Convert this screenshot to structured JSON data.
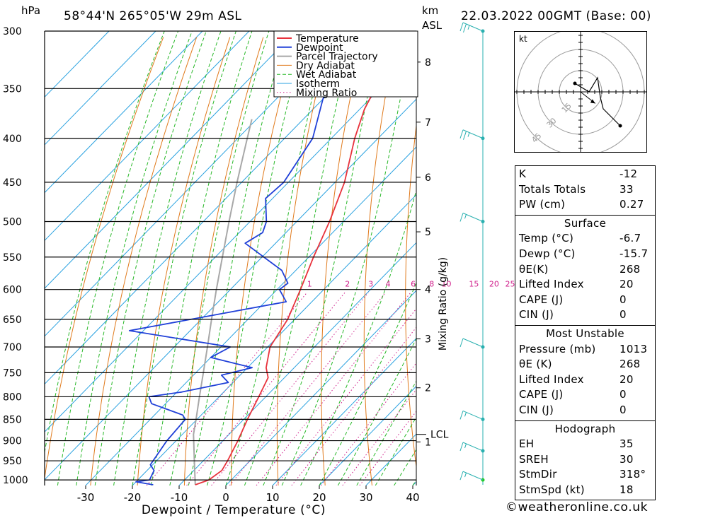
{
  "header": {
    "pressure_unit": "hPa",
    "location": "58°44'N  265°05'W  29m  ASL",
    "km_unit": "km",
    "asl_label": "ASL",
    "datetime": "22.03.2022  00GMT  (Base: 00)"
  },
  "chart_data": {
    "type": "skew-t",
    "xlabel": "Dewpoint / Temperature (°C)",
    "ylabel_right": "Mixing Ratio (g/kg)",
    "pressure_levels": [
      300,
      350,
      400,
      450,
      500,
      550,
      600,
      650,
      700,
      750,
      800,
      850,
      900,
      950,
      1000
    ],
    "pressure_range": [
      300,
      1015
    ],
    "temperature_ticks": [
      -30,
      -20,
      -10,
      0,
      10,
      20,
      30,
      40
    ],
    "temperature_range_at_bottom": [
      -40,
      40
    ],
    "km_ticks": [
      {
        "label": "8",
        "p": 326
      },
      {
        "label": "7",
        "p": 383
      },
      {
        "label": "6",
        "p": 444
      },
      {
        "label": "5",
        "p": 514
      },
      {
        "label": "4",
        "p": 600
      },
      {
        "label": "3",
        "p": 685
      },
      {
        "label": "2",
        "p": 781
      },
      {
        "label": "1",
        "p": 903
      }
    ],
    "lcl": {
      "label": "LCL",
      "p": 885
    },
    "mixing_ratio_labels": [
      "1",
      "2",
      "3",
      "4",
      "6",
      "8",
      "10",
      "15",
      "20",
      "25"
    ],
    "mixing_ratio_label_pressure": 600,
    "legend": [
      "Temperature",
      "Dewpoint",
      "Parcel Trajectory",
      "Dry Adiabat",
      "Wet Adiabat",
      "Isotherm",
      "Mixing Ratio"
    ],
    "colors": {
      "temperature": "#e8323c",
      "dewpoint": "#2040d8",
      "parcel": "#a8a8a8",
      "dry_adiabat": "#e07a1c",
      "wet_adiabat": "#28b828",
      "isotherm": "#2aa2e0",
      "mixing_ratio": "#d0208c",
      "wind": "#2ab0b0"
    },
    "temperature": [
      {
        "p": 1013,
        "t": -6.7
      },
      {
        "p": 1000,
        "t": -4.8
      },
      {
        "p": 975,
        "t": -4.0
      },
      {
        "p": 950,
        "t": -4.8
      },
      {
        "p": 900,
        "t": -6.8
      },
      {
        "p": 850,
        "t": -9.2
      },
      {
        "p": 800,
        "t": -11.5
      },
      {
        "p": 760,
        "t": -13.5
      },
      {
        "p": 740,
        "t": -16.0
      },
      {
        "p": 700,
        "t": -19.5
      },
      {
        "p": 650,
        "t": -21.5
      },
      {
        "p": 600,
        "t": -25.0
      },
      {
        "p": 550,
        "t": -29.0
      },
      {
        "p": 500,
        "t": -33.0
      },
      {
        "p": 450,
        "t": -38.0
      },
      {
        "p": 400,
        "t": -45.0
      },
      {
        "p": 370,
        "t": -49.0
      },
      {
        "p": 350,
        "t": -51.0
      },
      {
        "p": 340,
        "t": -50.0
      },
      {
        "p": 325,
        "t": -51.5
      },
      {
        "p": 310,
        "t": -51.0
      },
      {
        "p": 300,
        "t": -53.0
      }
    ],
    "dewpoint": [
      {
        "p": 1013,
        "t": -15.7
      },
      {
        "p": 1005,
        "t": -20.0
      },
      {
        "p": 1000,
        "t": -17.5
      },
      {
        "p": 975,
        "t": -18.5
      },
      {
        "p": 960,
        "t": -20.5
      },
      {
        "p": 900,
        "t": -22.0
      },
      {
        "p": 850,
        "t": -22.5
      },
      {
        "p": 840,
        "t": -24.0
      },
      {
        "p": 815,
        "t": -33.0
      },
      {
        "p": 800,
        "t": -35.0
      },
      {
        "p": 790,
        "t": -29.0
      },
      {
        "p": 770,
        "t": -21.0
      },
      {
        "p": 755,
        "t": -24.0
      },
      {
        "p": 740,
        "t": -19.0
      },
      {
        "p": 720,
        "t": -30.0
      },
      {
        "p": 700,
        "t": -28.0
      },
      {
        "p": 670,
        "t": -53.0
      },
      {
        "p": 620,
        "t": -25.5
      },
      {
        "p": 600,
        "t": -29.5
      },
      {
        "p": 590,
        "t": -29.0
      },
      {
        "p": 570,
        "t": -33.0
      },
      {
        "p": 530,
        "t": -46.5
      },
      {
        "p": 515,
        "t": -45.0
      },
      {
        "p": 500,
        "t": -46.5
      },
      {
        "p": 470,
        "t": -51.5
      },
      {
        "p": 450,
        "t": -51.0
      },
      {
        "p": 400,
        "t": -54.0
      },
      {
        "p": 360,
        "t": -60.0
      },
      {
        "p": 345,
        "t": -62.0
      },
      {
        "p": 330,
        "t": -62.5
      },
      {
        "p": 320,
        "t": -62.0
      },
      {
        "p": 300,
        "t": -66.0
      }
    ],
    "parcel": [
      {
        "p": 1013,
        "t": -6.7
      },
      {
        "p": 950,
        "t": -11.9
      },
      {
        "p": 885,
        "t": -17.6
      },
      {
        "p": 850,
        "t": -20.2
      },
      {
        "p": 800,
        "t": -24.2
      },
      {
        "p": 750,
        "t": -28.4
      },
      {
        "p": 700,
        "t": -32.9
      },
      {
        "p": 650,
        "t": -37.8
      },
      {
        "p": 600,
        "t": -43.0
      },
      {
        "p": 550,
        "t": -48.5
      },
      {
        "p": 500,
        "t": -54.5
      },
      {
        "p": 450,
        "t": -61.0
      },
      {
        "p": 400,
        "t": -68.0
      },
      {
        "p": 380,
        "t": -71.0
      }
    ],
    "wind_barbs": [
      {
        "p": 300,
        "dir": 300,
        "spd": 25
      },
      {
        "p": 400,
        "dir": 300,
        "spd": 25
      },
      {
        "p": 500,
        "dir": 310,
        "spd": 15
      },
      {
        "p": 700,
        "dir": 300,
        "spd": 10
      },
      {
        "p": 850,
        "dir": 300,
        "spd": 15
      },
      {
        "p": 925,
        "dir": 310,
        "spd": 15
      },
      {
        "p": 1000,
        "dir": 318,
        "spd": 18
      }
    ]
  },
  "hodograph": {
    "unit_label": "kt",
    "ring_labels": [
      "15",
      "30",
      "45"
    ],
    "trace": [
      {
        "u": 14,
        "v": -12
      },
      {
        "u": 8,
        "v": -6
      },
      {
        "u": 7,
        "v": -2
      },
      {
        "u": 6,
        "v": 5
      },
      {
        "u": 3,
        "v": 0
      },
      {
        "u": -2,
        "v": 3
      },
      {
        "u": 14,
        "v": -12
      }
    ]
  },
  "stats": {
    "indices": [
      {
        "label": "K",
        "value": "-12"
      },
      {
        "label": "Totals Totals",
        "value": "33"
      },
      {
        "label": "PW (cm)",
        "value": "0.27"
      }
    ],
    "surface": {
      "title": "Surface",
      "rows": [
        {
          "label": "Temp (°C)",
          "value": "-6.7"
        },
        {
          "label": "Dewp (°C)",
          "value": "-15.7"
        },
        {
          "label": "θE(K)",
          "value": "268"
        },
        {
          "label": "Lifted Index",
          "value": "20"
        },
        {
          "label": "CAPE (J)",
          "value": "0"
        },
        {
          "label": "CIN (J)",
          "value": "0"
        }
      ]
    },
    "most_unstable": {
      "title": "Most Unstable",
      "rows": [
        {
          "label": "Pressure (mb)",
          "value": "1013"
        },
        {
          "label": "θE (K)",
          "value": "268"
        },
        {
          "label": "Lifted Index",
          "value": "20"
        },
        {
          "label": "CAPE (J)",
          "value": "0"
        },
        {
          "label": "CIN (J)",
          "value": "0"
        }
      ]
    },
    "hodograph": {
      "title": "Hodograph",
      "rows": [
        {
          "label": "EH",
          "value": "35"
        },
        {
          "label": "SREH",
          "value": "30"
        },
        {
          "label": "StmDir",
          "value": "318°"
        },
        {
          "label": "StmSpd (kt)",
          "value": "18"
        }
      ]
    }
  },
  "footer": {
    "copyright": "©weatheronline.co.uk"
  }
}
